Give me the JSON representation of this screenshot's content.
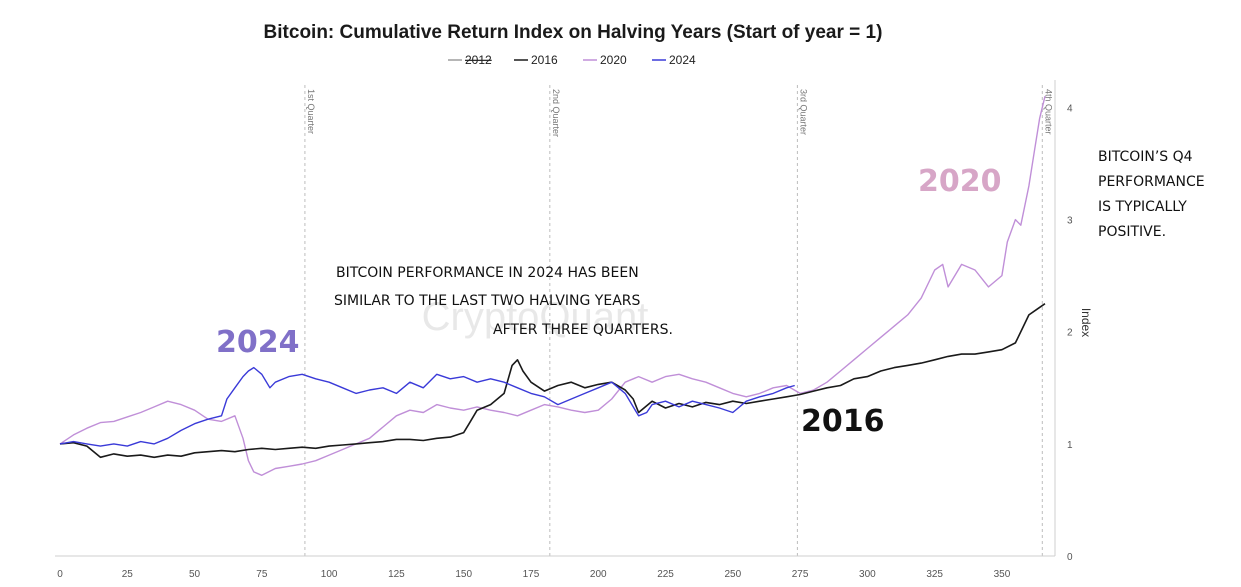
{
  "chart_data": {
    "type": "line",
    "title": "Bitcoin: Cumulative Return Index on Halving Years (Start of year = 1)",
    "ylabel": "Index",
    "xlim": [
      0,
      366
    ],
    "ylim": [
      0,
      4.2
    ],
    "x_ticks": [
      0,
      25,
      50,
      75,
      100,
      125,
      150,
      175,
      200,
      225,
      250,
      275,
      300,
      325,
      350
    ],
    "y_ticks": [
      0,
      1,
      2,
      3,
      4
    ],
    "y_axis_position": "right",
    "grid": false,
    "legend_position": "top-center",
    "watermark": "CryptoQuant",
    "quarter_markers": [
      {
        "x": 91,
        "label": "1st Quarter"
      },
      {
        "x": 182,
        "label": "2nd Quarter"
      },
      {
        "x": 274,
        "label": "3rd Quarter"
      },
      {
        "x": 365,
        "label": "4th Quarter"
      }
    ],
    "series": [
      {
        "name": "2012",
        "color": "#9e9e9e",
        "hidden": true,
        "points": []
      },
      {
        "name": "2016",
        "color": "#1a1a1a",
        "points": [
          [
            0,
            1.0
          ],
          [
            5,
            1.01
          ],
          [
            10,
            0.98
          ],
          [
            15,
            0.88
          ],
          [
            20,
            0.91
          ],
          [
            25,
            0.89
          ],
          [
            30,
            0.9
          ],
          [
            35,
            0.88
          ],
          [
            40,
            0.9
          ],
          [
            45,
            0.89
          ],
          [
            50,
            0.92
          ],
          [
            55,
            0.93
          ],
          [
            60,
            0.94
          ],
          [
            65,
            0.93
          ],
          [
            70,
            0.95
          ],
          [
            75,
            0.96
          ],
          [
            80,
            0.95
          ],
          [
            85,
            0.96
          ],
          [
            90,
            0.97
          ],
          [
            95,
            0.96
          ],
          [
            100,
            0.98
          ],
          [
            105,
            0.99
          ],
          [
            110,
            1.0
          ],
          [
            115,
            1.01
          ],
          [
            120,
            1.02
          ],
          [
            125,
            1.04
          ],
          [
            130,
            1.04
          ],
          [
            135,
            1.03
          ],
          [
            140,
            1.05
          ],
          [
            145,
            1.06
          ],
          [
            150,
            1.1
          ],
          [
            152,
            1.18
          ],
          [
            155,
            1.3
          ],
          [
            160,
            1.35
          ],
          [
            165,
            1.45
          ],
          [
            168,
            1.7
          ],
          [
            170,
            1.75
          ],
          [
            172,
            1.65
          ],
          [
            175,
            1.55
          ],
          [
            180,
            1.47
          ],
          [
            185,
            1.52
          ],
          [
            190,
            1.55
          ],
          [
            195,
            1.5
          ],
          [
            200,
            1.53
          ],
          [
            205,
            1.55
          ],
          [
            210,
            1.48
          ],
          [
            213,
            1.4
          ],
          [
            215,
            1.28
          ],
          [
            220,
            1.38
          ],
          [
            225,
            1.32
          ],
          [
            230,
            1.36
          ],
          [
            235,
            1.33
          ],
          [
            240,
            1.37
          ],
          [
            245,
            1.35
          ],
          [
            250,
            1.38
          ],
          [
            255,
            1.36
          ],
          [
            260,
            1.38
          ],
          [
            265,
            1.4
          ],
          [
            270,
            1.42
          ],
          [
            275,
            1.44
          ],
          [
            280,
            1.47
          ],
          [
            285,
            1.5
          ],
          [
            290,
            1.52
          ],
          [
            295,
            1.58
          ],
          [
            300,
            1.6
          ],
          [
            305,
            1.65
          ],
          [
            310,
            1.68
          ],
          [
            315,
            1.7
          ],
          [
            320,
            1.72
          ],
          [
            325,
            1.75
          ],
          [
            330,
            1.78
          ],
          [
            335,
            1.8
          ],
          [
            340,
            1.8
          ],
          [
            345,
            1.82
          ],
          [
            350,
            1.84
          ],
          [
            355,
            1.9
          ],
          [
            358,
            2.05
          ],
          [
            360,
            2.15
          ],
          [
            363,
            2.2
          ],
          [
            366,
            2.25
          ]
        ]
      },
      {
        "name": "2020",
        "color": "#c08fd8",
        "points": [
          [
            0,
            1.0
          ],
          [
            5,
            1.08
          ],
          [
            10,
            1.14
          ],
          [
            15,
            1.19
          ],
          [
            20,
            1.2
          ],
          [
            25,
            1.24
          ],
          [
            30,
            1.28
          ],
          [
            35,
            1.33
          ],
          [
            40,
            1.38
          ],
          [
            45,
            1.35
          ],
          [
            50,
            1.3
          ],
          [
            55,
            1.22
          ],
          [
            60,
            1.2
          ],
          [
            65,
            1.25
          ],
          [
            68,
            1.05
          ],
          [
            70,
            0.85
          ],
          [
            72,
            0.75
          ],
          [
            75,
            0.72
          ],
          [
            80,
            0.78
          ],
          [
            85,
            0.8
          ],
          [
            90,
            0.82
          ],
          [
            95,
            0.85
          ],
          [
            100,
            0.9
          ],
          [
            105,
            0.95
          ],
          [
            110,
            1.0
          ],
          [
            115,
            1.05
          ],
          [
            120,
            1.15
          ],
          [
            125,
            1.25
          ],
          [
            130,
            1.3
          ],
          [
            135,
            1.28
          ],
          [
            140,
            1.35
          ],
          [
            145,
            1.32
          ],
          [
            150,
            1.3
          ],
          [
            155,
            1.33
          ],
          [
            160,
            1.3
          ],
          [
            165,
            1.28
          ],
          [
            170,
            1.25
          ],
          [
            175,
            1.3
          ],
          [
            180,
            1.35
          ],
          [
            185,
            1.33
          ],
          [
            190,
            1.3
          ],
          [
            195,
            1.28
          ],
          [
            200,
            1.3
          ],
          [
            205,
            1.4
          ],
          [
            210,
            1.55
          ],
          [
            215,
            1.6
          ],
          [
            220,
            1.55
          ],
          [
            225,
            1.6
          ],
          [
            230,
            1.62
          ],
          [
            235,
            1.58
          ],
          [
            240,
            1.55
          ],
          [
            245,
            1.5
          ],
          [
            250,
            1.45
          ],
          [
            255,
            1.42
          ],
          [
            260,
            1.45
          ],
          [
            265,
            1.5
          ],
          [
            270,
            1.52
          ],
          [
            275,
            1.45
          ],
          [
            280,
            1.48
          ],
          [
            285,
            1.55
          ],
          [
            290,
            1.65
          ],
          [
            295,
            1.75
          ],
          [
            300,
            1.85
          ],
          [
            305,
            1.95
          ],
          [
            310,
            2.05
          ],
          [
            315,
            2.15
          ],
          [
            320,
            2.3
          ],
          [
            325,
            2.55
          ],
          [
            328,
            2.6
          ],
          [
            330,
            2.4
          ],
          [
            335,
            2.6
          ],
          [
            340,
            2.55
          ],
          [
            345,
            2.4
          ],
          [
            350,
            2.5
          ],
          [
            352,
            2.8
          ],
          [
            355,
            3.0
          ],
          [
            357,
            2.95
          ],
          [
            360,
            3.3
          ],
          [
            362,
            3.6
          ],
          [
            364,
            3.9
          ],
          [
            366,
            4.1
          ]
        ]
      },
      {
        "name": "2024",
        "color": "#3a3ad8",
        "points": [
          [
            0,
            1.0
          ],
          [
            5,
            1.02
          ],
          [
            10,
            1.0
          ],
          [
            15,
            0.98
          ],
          [
            20,
            1.0
          ],
          [
            25,
            0.98
          ],
          [
            30,
            1.02
          ],
          [
            35,
            1.0
          ],
          [
            40,
            1.05
          ],
          [
            45,
            1.12
          ],
          [
            50,
            1.18
          ],
          [
            55,
            1.22
          ],
          [
            60,
            1.25
          ],
          [
            62,
            1.4
          ],
          [
            65,
            1.5
          ],
          [
            68,
            1.6
          ],
          [
            70,
            1.65
          ],
          [
            72,
            1.68
          ],
          [
            75,
            1.62
          ],
          [
            78,
            1.5
          ],
          [
            80,
            1.55
          ],
          [
            85,
            1.6
          ],
          [
            90,
            1.62
          ],
          [
            95,
            1.58
          ],
          [
            100,
            1.55
          ],
          [
            105,
            1.5
          ],
          [
            110,
            1.45
          ],
          [
            115,
            1.48
          ],
          [
            120,
            1.5
          ],
          [
            125,
            1.45
          ],
          [
            130,
            1.55
          ],
          [
            135,
            1.5
          ],
          [
            140,
            1.62
          ],
          [
            145,
            1.58
          ],
          [
            150,
            1.6
          ],
          [
            155,
            1.55
          ],
          [
            160,
            1.58
          ],
          [
            165,
            1.55
          ],
          [
            170,
            1.5
          ],
          [
            175,
            1.45
          ],
          [
            180,
            1.42
          ],
          [
            185,
            1.35
          ],
          [
            190,
            1.4
          ],
          [
            195,
            1.45
          ],
          [
            200,
            1.5
          ],
          [
            205,
            1.55
          ],
          [
            210,
            1.45
          ],
          [
            215,
            1.25
          ],
          [
            218,
            1.28
          ],
          [
            220,
            1.35
          ],
          [
            225,
            1.38
          ],
          [
            230,
            1.33
          ],
          [
            235,
            1.38
          ],
          [
            240,
            1.35
          ],
          [
            245,
            1.32
          ],
          [
            250,
            1.28
          ],
          [
            255,
            1.38
          ],
          [
            260,
            1.42
          ],
          [
            265,
            1.45
          ],
          [
            270,
            1.5
          ],
          [
            273,
            1.52
          ]
        ]
      }
    ],
    "annotations": [
      {
        "lines": [
          "BITCOIN PERFORMANCE IN 2024 HAS BEEN",
          "SIMILAR TO THE LAST TWO HALVING YEARS",
          "AFTER THREE QUARTERS."
        ]
      },
      {
        "lines": [
          "BITCOIN’S Q4",
          "PERFORMANCE",
          "IS TYPICALLY",
          "POSITIVE."
        ]
      }
    ],
    "series_callouts": [
      {
        "text": "2024",
        "color": "#8070c8"
      },
      {
        "text": "2020",
        "color": "#d7a6c7"
      },
      {
        "text": "2016",
        "color": "#111111"
      }
    ]
  }
}
